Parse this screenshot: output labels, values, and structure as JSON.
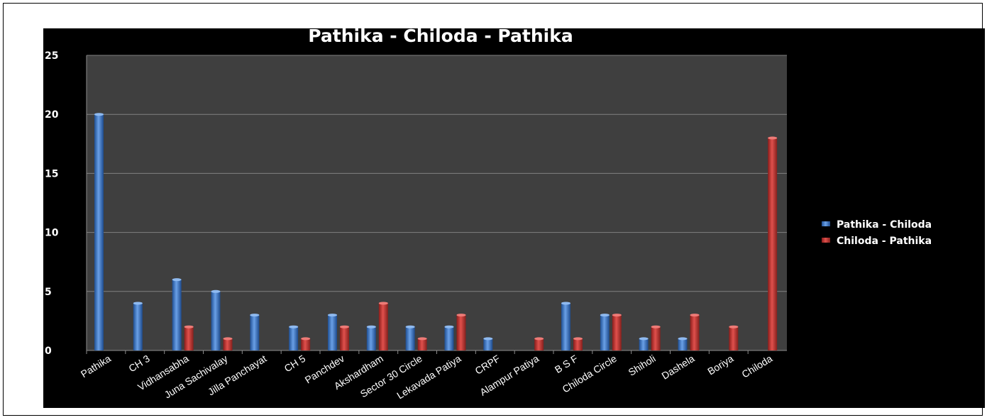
{
  "chart_data": {
    "type": "bar",
    "title": "Pathika - Chiloda - Pathika",
    "xlabel": "",
    "ylabel": "",
    "ylim": [
      0,
      25
    ],
    "yticks": [
      0,
      5,
      10,
      15,
      20,
      25
    ],
    "grid": true,
    "legend_position": "right",
    "categories": [
      "Pathika",
      "CH 3",
      "Vidhansabha",
      "Juna Sachivalay",
      "Jilla Panchayat",
      "CH 5",
      "Panchdev",
      "Akshardham",
      "Sector 30 Circle",
      "Lekavada Patiya",
      "CRPF",
      "Alampur Patiya",
      "B S F",
      "Chiloda Circle",
      "Shiholi",
      "Dashela",
      "Boriya",
      "Chiloda"
    ],
    "series": [
      {
        "name": "Pathika - Chiloda",
        "color": "#3a74c4",
        "values": [
          20,
          4,
          6,
          5,
          3,
          2,
          3,
          2,
          2,
          2,
          1,
          0,
          4,
          3,
          1,
          1,
          0,
          0
        ]
      },
      {
        "name": "Chiloda - Pathika",
        "color": "#c0302e",
        "values": [
          0,
          0,
          2,
          1,
          0,
          1,
          2,
          4,
          1,
          3,
          0,
          1,
          1,
          3,
          2,
          3,
          2,
          18
        ]
      }
    ],
    "colors": {
      "background": "#000000",
      "plot_area": "#3f3f3f",
      "gridline": "#808080",
      "text": "#ffffff"
    }
  }
}
